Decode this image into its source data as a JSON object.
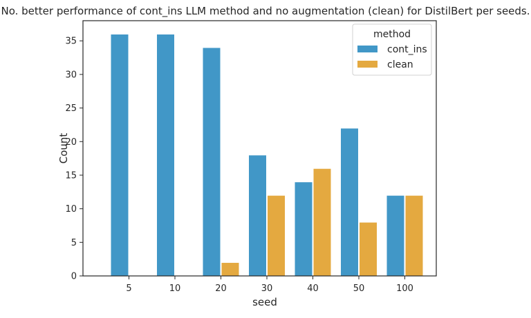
{
  "chart_data": {
    "type": "bar",
    "title": "No. better performance of cont_ins LLM method and no augmentation (clean) for DistilBert per seeds.",
    "xlabel": "seed",
    "ylabel": "Count",
    "categories": [
      "5",
      "10",
      "20",
      "30",
      "40",
      "50",
      "100"
    ],
    "series": [
      {
        "name": "cont_ins",
        "values": [
          36,
          36,
          34,
          18,
          14,
          22,
          12
        ],
        "color": "#4197c7"
      },
      {
        "name": "clean",
        "values": [
          0,
          0,
          2,
          12,
          16,
          8,
          12
        ],
        "color": "#e4a940"
      }
    ],
    "ylim": [
      0,
      38
    ],
    "yticks": [
      0,
      5,
      10,
      15,
      20,
      25,
      30,
      35
    ],
    "grid": false,
    "legend": {
      "title": "method",
      "placement": "top-right"
    }
  }
}
